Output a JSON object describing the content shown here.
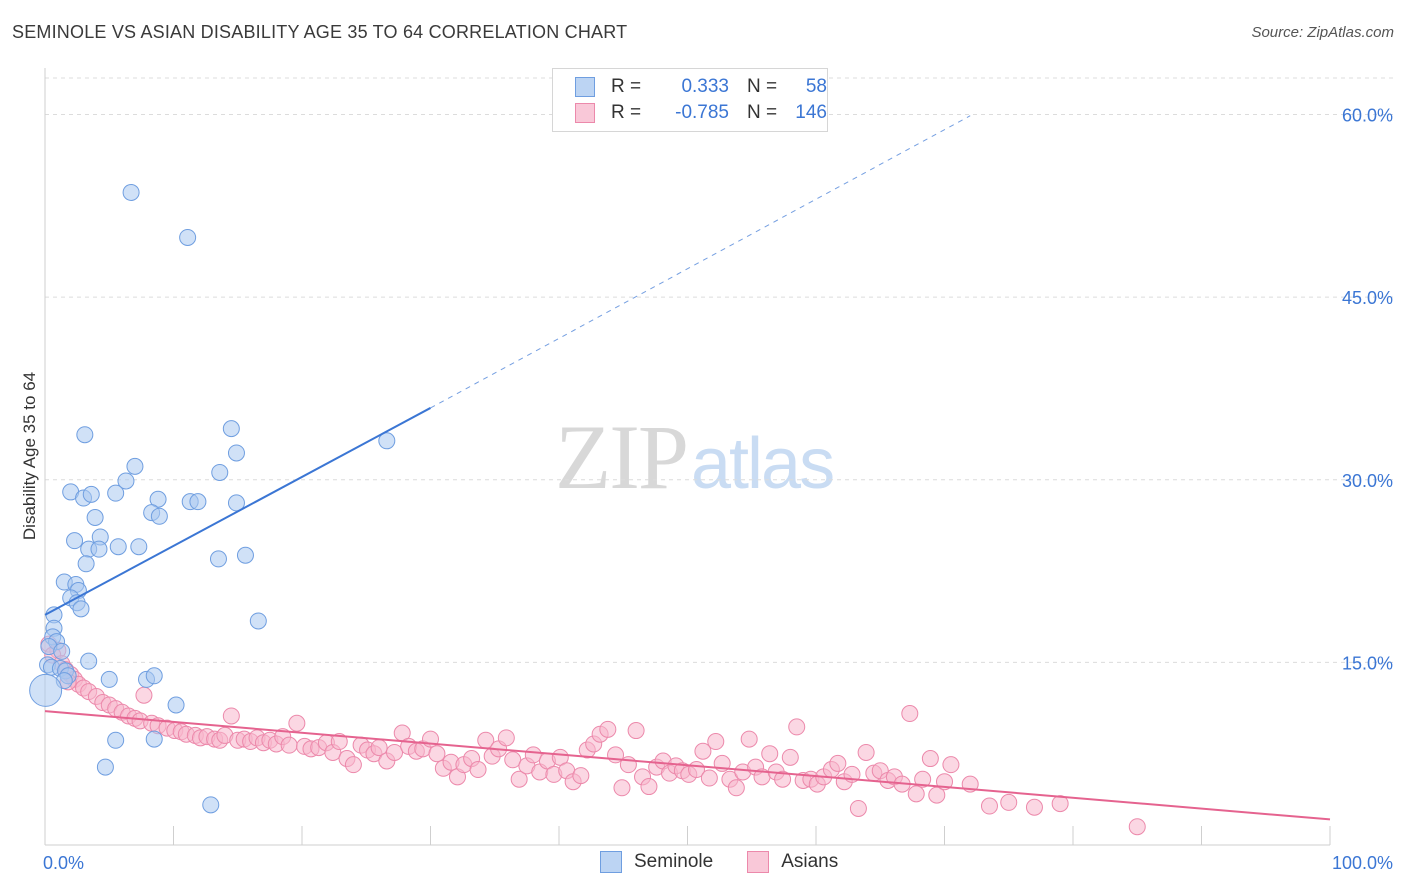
{
  "header": {
    "title": "SEMINOLE VS ASIAN DISABILITY AGE 35 TO 64 CORRELATION CHART",
    "source": "Source: ZipAtlas.com"
  },
  "legend": {
    "rows": [
      {
        "r_label": "R =",
        "r_value": "0.333",
        "n_label": "N =",
        "n_value": "58"
      },
      {
        "r_label": "R =",
        "r_value": "-0.785",
        "n_label": "N =",
        "n_value": "146"
      }
    ]
  },
  "bottom_legend": [
    "Seminole",
    "Asians"
  ],
  "watermark": {
    "zip": "ZIP",
    "atlas": "atlas"
  },
  "colors": {
    "seminole_fill": "#a9c8f0",
    "seminole_stroke": "#6f9ee0",
    "seminole_line": "#3b76d4",
    "asians_fill": "#f7b6cc",
    "asians_stroke": "#ec89ab",
    "asians_line": "#e5638f",
    "tick_label": "#3b76d4",
    "grid": "#dcdcdc"
  },
  "chart_data": {
    "type": "scatter",
    "title": "SEMINOLE VS ASIAN DISABILITY AGE 35 TO 64 CORRELATION CHART",
    "xlabel": "",
    "ylabel": "Disability Age 35 to 64",
    "xlim": [
      0,
      100
    ],
    "ylim": [
      0,
      63
    ],
    "x_tick_labels": [
      "0.0%",
      "100.0%"
    ],
    "y_ticks": [
      15,
      30,
      45,
      60
    ],
    "y_tick_labels": [
      "15.0%",
      "30.0%",
      "45.0%",
      "60.0%"
    ],
    "grid": true,
    "series": [
      {
        "name": "Seminole",
        "r": 0.333,
        "n": 58,
        "trend": {
          "x0": 0,
          "y0": 18.9,
          "x1": 30,
          "y1": 35.9,
          "dashed_to_x": 72,
          "dashed_to_y": 59.9
        },
        "points": [
          [
            6.7,
            53.6
          ],
          [
            11.1,
            49.9
          ],
          [
            3.1,
            33.7
          ],
          [
            14.5,
            34.2
          ],
          [
            14.9,
            32.2
          ],
          [
            26.6,
            33.2
          ],
          [
            7.0,
            31.1
          ],
          [
            6.3,
            29.9
          ],
          [
            13.6,
            30.6
          ],
          [
            2.0,
            29.0
          ],
          [
            3.0,
            28.5
          ],
          [
            3.6,
            28.8
          ],
          [
            5.5,
            28.9
          ],
          [
            8.8,
            28.4
          ],
          [
            11.3,
            28.2
          ],
          [
            11.9,
            28.2
          ],
          [
            14.9,
            28.1
          ],
          [
            8.3,
            27.3
          ],
          [
            3.9,
            26.9
          ],
          [
            8.9,
            27.0
          ],
          [
            2.3,
            25.0
          ],
          [
            4.3,
            25.3
          ],
          [
            3.4,
            24.3
          ],
          [
            4.2,
            24.3
          ],
          [
            5.7,
            24.5
          ],
          [
            7.3,
            24.5
          ],
          [
            13.5,
            23.5
          ],
          [
            15.6,
            23.8
          ],
          [
            3.2,
            23.1
          ],
          [
            1.5,
            21.6
          ],
          [
            2.4,
            21.4
          ],
          [
            2.6,
            20.9
          ],
          [
            2.0,
            20.3
          ],
          [
            2.5,
            19.9
          ],
          [
            2.8,
            19.4
          ],
          [
            0.7,
            18.9
          ],
          [
            16.6,
            18.4
          ],
          [
            0.7,
            17.8
          ],
          [
            0.6,
            17.1
          ],
          [
            0.9,
            16.7
          ],
          [
            0.3,
            16.3
          ],
          [
            1.3,
            15.9
          ],
          [
            3.4,
            15.1
          ],
          [
            0.2,
            14.8
          ],
          [
            0.5,
            14.6
          ],
          [
            1.2,
            14.5
          ],
          [
            1.6,
            14.3
          ],
          [
            1.8,
            13.9
          ],
          [
            1.5,
            13.5
          ],
          [
            5.0,
            13.6
          ],
          [
            7.9,
            13.6
          ],
          [
            8.5,
            13.9
          ],
          [
            10.2,
            11.5
          ],
          [
            0.05,
            12.7
          ],
          [
            5.5,
            8.6
          ],
          [
            8.5,
            8.7
          ],
          [
            4.7,
            6.4
          ],
          [
            12.9,
            3.3
          ]
        ]
      },
      {
        "name": "Asians",
        "r": -0.785,
        "n": 146,
        "trend": {
          "x0": 0,
          "y0": 11.0,
          "x1": 100,
          "y1": 2.1
        },
        "points": [
          [
            0.3,
            16.5
          ],
          [
            1.0,
            16.0
          ],
          [
            0.6,
            15.6
          ],
          [
            1.3,
            14.9
          ],
          [
            1.6,
            14.4
          ],
          [
            2.0,
            14.0
          ],
          [
            2.3,
            13.6
          ],
          [
            2.6,
            13.2
          ],
          [
            3.0,
            12.9
          ],
          [
            3.4,
            12.6
          ],
          [
            1.8,
            13.4
          ],
          [
            4.0,
            12.2
          ],
          [
            4.5,
            11.7
          ],
          [
            5.0,
            11.5
          ],
          [
            5.5,
            11.2
          ],
          [
            6.0,
            10.9
          ],
          [
            6.5,
            10.6
          ],
          [
            7.0,
            10.4
          ],
          [
            7.4,
            10.2
          ],
          [
            7.7,
            12.3
          ],
          [
            8.3,
            10.0
          ],
          [
            8.8,
            9.8
          ],
          [
            9.5,
            9.6
          ],
          [
            10.1,
            9.4
          ],
          [
            10.6,
            9.3
          ],
          [
            11.0,
            9.1
          ],
          [
            11.7,
            9.0
          ],
          [
            12.1,
            8.8
          ],
          [
            12.6,
            8.9
          ],
          [
            13.2,
            8.7
          ],
          [
            13.6,
            8.6
          ],
          [
            14.0,
            9.0
          ],
          [
            14.5,
            10.6
          ],
          [
            15.0,
            8.6
          ],
          [
            15.5,
            8.7
          ],
          [
            16.0,
            8.5
          ],
          [
            16.5,
            8.8
          ],
          [
            17.0,
            8.4
          ],
          [
            17.5,
            8.6
          ],
          [
            18.0,
            8.3
          ],
          [
            18.5,
            8.9
          ],
          [
            19.0,
            8.2
          ],
          [
            19.6,
            10.0
          ],
          [
            20.2,
            8.1
          ],
          [
            20.7,
            7.9
          ],
          [
            21.3,
            8.0
          ],
          [
            21.9,
            8.4
          ],
          [
            22.4,
            7.6
          ],
          [
            22.9,
            8.5
          ],
          [
            23.5,
            7.1
          ],
          [
            24.0,
            6.6
          ],
          [
            24.6,
            8.2
          ],
          [
            25.1,
            7.8
          ],
          [
            25.6,
            7.5
          ],
          [
            26.0,
            8.0
          ],
          [
            26.6,
            6.9
          ],
          [
            27.2,
            7.6
          ],
          [
            27.8,
            9.2
          ],
          [
            28.3,
            8.1
          ],
          [
            28.9,
            7.7
          ],
          [
            29.4,
            7.9
          ],
          [
            30.0,
            8.7
          ],
          [
            30.5,
            7.5
          ],
          [
            31.0,
            6.3
          ],
          [
            31.6,
            6.8
          ],
          [
            32.1,
            5.6
          ],
          [
            32.6,
            6.6
          ],
          [
            33.2,
            7.1
          ],
          [
            33.7,
            6.2
          ],
          [
            34.3,
            8.6
          ],
          [
            34.8,
            7.3
          ],
          [
            35.3,
            7.9
          ],
          [
            35.9,
            8.8
          ],
          [
            36.4,
            7.0
          ],
          [
            36.9,
            5.4
          ],
          [
            37.5,
            6.5
          ],
          [
            38.0,
            7.4
          ],
          [
            38.5,
            6.0
          ],
          [
            39.1,
            6.9
          ],
          [
            39.6,
            5.8
          ],
          [
            40.1,
            7.2
          ],
          [
            40.6,
            6.1
          ],
          [
            41.1,
            5.2
          ],
          [
            41.7,
            5.7
          ],
          [
            42.2,
            7.8
          ],
          [
            42.7,
            8.3
          ],
          [
            43.2,
            9.1
          ],
          [
            43.8,
            9.5
          ],
          [
            44.4,
            7.4
          ],
          [
            44.9,
            4.7
          ],
          [
            45.4,
            6.6
          ],
          [
            46.0,
            9.4
          ],
          [
            46.5,
            5.6
          ],
          [
            47.0,
            4.8
          ],
          [
            47.6,
            6.4
          ],
          [
            48.1,
            6.9
          ],
          [
            48.6,
            5.9
          ],
          [
            49.1,
            6.5
          ],
          [
            49.6,
            6.1
          ],
          [
            50.1,
            5.8
          ],
          [
            50.7,
            6.2
          ],
          [
            51.2,
            7.7
          ],
          [
            51.7,
            5.5
          ],
          [
            52.2,
            8.5
          ],
          [
            52.7,
            6.7
          ],
          [
            53.3,
            5.4
          ],
          [
            53.8,
            4.7
          ],
          [
            54.3,
            6.0
          ],
          [
            54.8,
            8.7
          ],
          [
            55.3,
            6.4
          ],
          [
            55.8,
            5.6
          ],
          [
            56.4,
            7.5
          ],
          [
            56.9,
            6.0
          ],
          [
            57.4,
            5.4
          ],
          [
            58.0,
            7.2
          ],
          [
            58.5,
            9.7
          ],
          [
            59.0,
            5.3
          ],
          [
            59.6,
            5.4
          ],
          [
            60.1,
            5.0
          ],
          [
            60.6,
            5.6
          ],
          [
            61.2,
            6.2
          ],
          [
            61.7,
            6.7
          ],
          [
            62.2,
            5.2
          ],
          [
            62.8,
            5.8
          ],
          [
            63.3,
            3.0
          ],
          [
            63.9,
            7.6
          ],
          [
            64.5,
            5.9
          ],
          [
            65.0,
            6.1
          ],
          [
            65.6,
            5.3
          ],
          [
            66.1,
            5.6
          ],
          [
            66.7,
            5.0
          ],
          [
            67.3,
            10.8
          ],
          [
            67.8,
            4.2
          ],
          [
            68.3,
            5.4
          ],
          [
            68.9,
            7.1
          ],
          [
            69.4,
            4.1
          ],
          [
            70.0,
            5.2
          ],
          [
            70.5,
            6.6
          ],
          [
            72.0,
            5.0
          ],
          [
            73.5,
            3.2
          ],
          [
            75.0,
            3.5
          ],
          [
            77.0,
            3.1
          ],
          [
            79.0,
            3.4
          ],
          [
            85.0,
            1.5
          ]
        ]
      }
    ]
  }
}
